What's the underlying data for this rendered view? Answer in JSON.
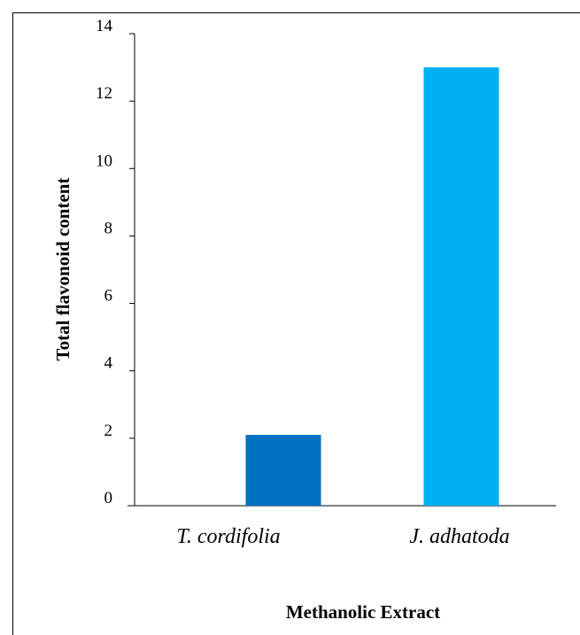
{
  "chart_data": {
    "type": "bar",
    "categories": [
      "T. cordifolia",
      "J. adhatoda"
    ],
    "values": [
      2.1,
      13.0
    ],
    "colors": [
      "#0070C0",
      "#00B0F0"
    ],
    "ylabel": "Total flavonoid content",
    "xlabel": "Methanolic Extract",
    "yticks": [
      0,
      2,
      4,
      6,
      8,
      10,
      12,
      14
    ],
    "ylim": [
      0,
      14
    ],
    "grid": false,
    "legend": "none"
  }
}
